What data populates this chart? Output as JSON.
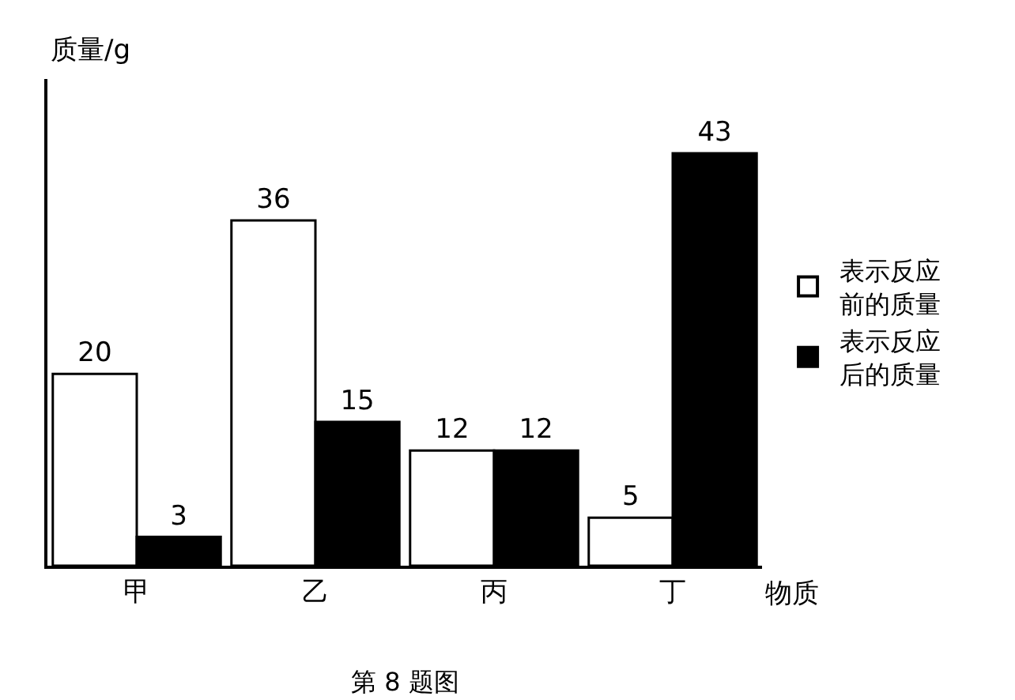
{
  "chart_data": {
    "type": "bar",
    "ylabel": "质量/g",
    "xlabel": "物质",
    "categories": [
      "甲",
      "乙",
      "丙",
      "丁"
    ],
    "series": [
      {
        "name": "表示反应前的质量",
        "color": "#ffffff",
        "values": [
          20,
          36,
          12,
          5
        ]
      },
      {
        "name": "表示反应后的质量",
        "color": "#000000",
        "values": [
          3,
          15,
          12,
          43
        ]
      }
    ],
    "data_labels": true,
    "legend": "right",
    "grid": false,
    "annotations": [
      "第 8 题图"
    ]
  }
}
